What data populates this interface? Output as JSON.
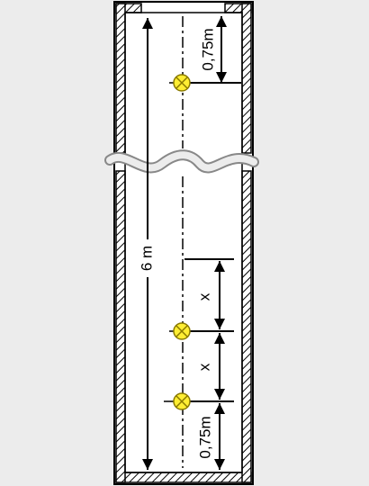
{
  "labels": {
    "total_length": "6 m",
    "end_offset_top": "0,75m",
    "end_offset_bottom": "0,75m",
    "spacing_upper": "x",
    "spacing_lower": "x"
  },
  "colors": {
    "background": "#ececec",
    "wall_fill": "#ffffff",
    "hatch": "#000000",
    "lamp_fill": "#ffee33",
    "lamp_stroke": "#8a7a00",
    "line": "#000000"
  },
  "icons": {
    "lamp": "lamp-cross-circle-icon",
    "arrowhead": "triangle-arrowhead-icon"
  },
  "lamp_count": 3
}
